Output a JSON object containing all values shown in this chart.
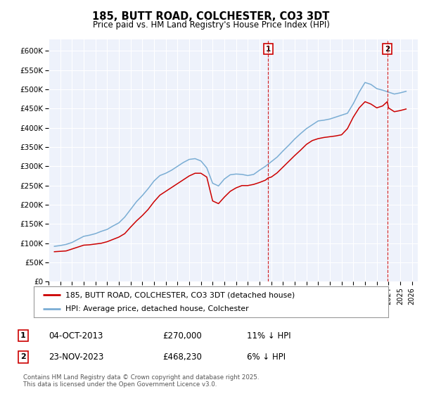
{
  "title": "185, BUTT ROAD, COLCHESTER, CO3 3DT",
  "subtitle": "Price paid vs. HM Land Registry's House Price Index (HPI)",
  "ylim": [
    0,
    630000
  ],
  "yticks": [
    0,
    50000,
    100000,
    150000,
    200000,
    250000,
    300000,
    350000,
    400000,
    450000,
    500000,
    550000,
    600000
  ],
  "ytick_labels": [
    "£0",
    "£50K",
    "£100K",
    "£150K",
    "£200K",
    "£250K",
    "£300K",
    "£350K",
    "£400K",
    "£450K",
    "£500K",
    "£550K",
    "£600K"
  ],
  "xlim_start": 1995.0,
  "xlim_end": 2026.5,
  "background_color": "#eef2fb",
  "grid_color": "#ffffff",
  "marker1_x": 2013.75,
  "marker1_label": "1",
  "marker1_date": "04-OCT-2013",
  "marker1_price": "£270,000",
  "marker1_hpi": "11% ↓ HPI",
  "marker2_x": 2023.9,
  "marker2_label": "2",
  "marker2_date": "23-NOV-2023",
  "marker2_price": "£468,230",
  "marker2_hpi": "6% ↓ HPI",
  "red_line_color": "#cc0000",
  "blue_line_color": "#7aadd4",
  "legend_label_red": "185, BUTT ROAD, COLCHESTER, CO3 3DT (detached house)",
  "legend_label_blue": "HPI: Average price, detached house, Colchester",
  "footnote": "Contains HM Land Registry data © Crown copyright and database right 2025.\nThis data is licensed under the Open Government Licence v3.0.",
  "red_x": [
    1995.5,
    1996,
    1996.5,
    1997,
    1997.5,
    1998,
    1998.5,
    1999,
    1999.5,
    2000,
    2000.5,
    2001,
    2001.5,
    2002,
    2002.5,
    2003,
    2003.5,
    2004,
    2004.5,
    2005,
    2005.5,
    2006,
    2006.5,
    2007,
    2007.5,
    2008,
    2008.5,
    2009,
    2009.5,
    2010,
    2010.5,
    2011,
    2011.5,
    2012,
    2012.5,
    2013,
    2013.5,
    2013.75,
    2014,
    2014.5,
    2015,
    2015.5,
    2016,
    2016.5,
    2017,
    2017.5,
    2018,
    2018.5,
    2019,
    2019.5,
    2020,
    2020.5,
    2021,
    2021.5,
    2022,
    2022.5,
    2023,
    2023.5,
    2023.9,
    2024,
    2024.5,
    2025,
    2025.5
  ],
  "red_y": [
    78000,
    79000,
    80000,
    85000,
    90000,
    95000,
    96000,
    98000,
    100000,
    104000,
    110000,
    116000,
    125000,
    142000,
    158000,
    172000,
    188000,
    208000,
    225000,
    235000,
    245000,
    255000,
    265000,
    275000,
    282000,
    282000,
    272000,
    210000,
    203000,
    220000,
    235000,
    244000,
    250000,
    250000,
    253000,
    258000,
    264000,
    270000,
    272000,
    283000,
    298000,
    313000,
    328000,
    342000,
    357000,
    367000,
    372000,
    375000,
    377000,
    379000,
    382000,
    398000,
    428000,
    452000,
    468000,
    462000,
    452000,
    457000,
    468230,
    452000,
    442000,
    445000,
    449000
  ],
  "blue_x": [
    1995.5,
    1996,
    1996.5,
    1997,
    1997.5,
    1998,
    1998.5,
    1999,
    1999.5,
    2000,
    2000.5,
    2001,
    2001.5,
    2002,
    2002.5,
    2003,
    2003.5,
    2004,
    2004.5,
    2005,
    2005.5,
    2006,
    2006.5,
    2007,
    2007.5,
    2008,
    2008.5,
    2009,
    2009.5,
    2010,
    2010.5,
    2011,
    2011.5,
    2012,
    2012.5,
    2013,
    2013.5,
    2014,
    2014.5,
    2015,
    2015.5,
    2016,
    2016.5,
    2017,
    2017.5,
    2018,
    2018.5,
    2019,
    2019.5,
    2020,
    2020.5,
    2021,
    2021.5,
    2022,
    2022.5,
    2023,
    2023.5,
    2024,
    2024.5,
    2025,
    2025.5
  ],
  "blue_y": [
    92000,
    94000,
    97000,
    102000,
    110000,
    118000,
    121000,
    125000,
    131000,
    136000,
    145000,
    153000,
    168000,
    188000,
    208000,
    224000,
    242000,
    262000,
    276000,
    282000,
    290000,
    300000,
    310000,
    318000,
    320000,
    314000,
    296000,
    256000,
    249000,
    267000,
    278000,
    280000,
    279000,
    276000,
    279000,
    290000,
    300000,
    312000,
    324000,
    340000,
    355000,
    371000,
    385000,
    398000,
    408000,
    418000,
    420000,
    423000,
    428000,
    433000,
    438000,
    463000,
    493000,
    518000,
    513000,
    502000,
    498000,
    493000,
    488000,
    491000,
    495000
  ]
}
